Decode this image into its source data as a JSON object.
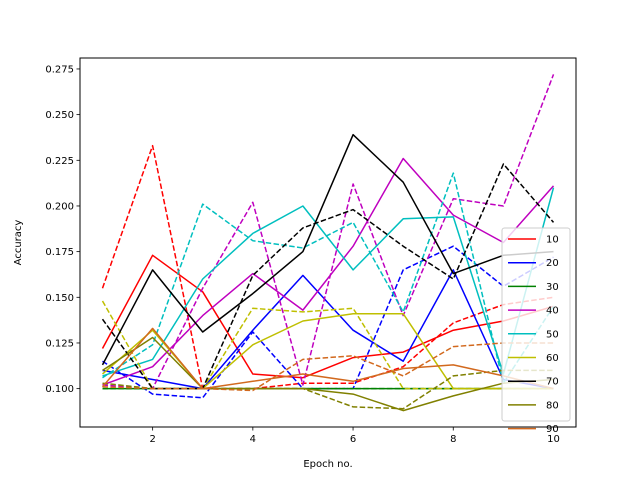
{
  "chart_data": {
    "type": "line",
    "title": "",
    "xlabel": "Epoch no.",
    "ylabel": "Accuracy",
    "xlim": [
      0.55,
      10.45
    ],
    "ylim": [
      0.079,
      0.281
    ],
    "x_ticks": [
      2,
      4,
      6,
      8,
      10
    ],
    "y_ticks": [
      0.1,
      0.125,
      0.15,
      0.175,
      0.2,
      0.225,
      0.25,
      0.275
    ],
    "y_tick_labels": [
      "0.100",
      "0.125",
      "0.150",
      "0.175",
      "0.200",
      "0.225",
      "0.250",
      "0.275"
    ],
    "grid": false,
    "legend_position": "center-right",
    "x": [
      1,
      2,
      3,
      4,
      5,
      6,
      7,
      8,
      9,
      10
    ],
    "series": [
      {
        "name": "10",
        "color": "#ff0000",
        "style": "solid",
        "values": [
          0.122,
          0.173,
          0.153,
          0.108,
          0.106,
          0.117,
          0.12,
          0.132,
          0.137,
          0.145
        ]
      },
      {
        "name": "",
        "color": "#ff0000",
        "style": "dashed",
        "values": [
          0.155,
          0.233,
          0.1,
          0.1,
          0.103,
          0.103,
          0.112,
          0.136,
          0.146,
          0.15
        ]
      },
      {
        "name": "20",
        "color": "#0000ff",
        "style": "solid",
        "values": [
          0.11,
          0.105,
          0.1,
          0.132,
          0.162,
          0.132,
          0.115,
          0.165,
          0.105,
          0.1
        ]
      },
      {
        "name": "",
        "color": "#0000ff",
        "style": "dashed",
        "values": [
          0.115,
          0.097,
          0.095,
          0.131,
          0.1,
          0.1,
          0.165,
          0.178,
          0.156,
          0.172
        ]
      },
      {
        "name": "30",
        "color": "#008000",
        "style": "solid",
        "values": [
          0.1,
          0.1,
          0.1,
          0.1,
          0.1,
          0.1,
          0.1,
          0.1,
          0.1,
          0.1
        ]
      },
      {
        "name": "",
        "color": "#008000",
        "style": "dashed",
        "values": [
          0.1,
          0.1,
          0.1,
          0.1,
          0.1,
          0.1,
          0.1,
          0.1,
          0.1,
          0.1
        ]
      },
      {
        "name": "40",
        "color": "#bf00bf",
        "style": "solid",
        "values": [
          0.102,
          0.112,
          0.14,
          0.163,
          0.143,
          0.178,
          0.226,
          0.195,
          0.18,
          0.211
        ]
      },
      {
        "name": "",
        "color": "#bf00bf",
        "style": "dashed",
        "values": [
          0.102,
          0.1,
          0.155,
          0.202,
          0.102,
          0.212,
          0.14,
          0.204,
          0.2,
          0.272
        ]
      },
      {
        "name": "50",
        "color": "#00bfbf",
        "style": "solid",
        "values": [
          0.107,
          0.116,
          0.16,
          0.185,
          0.2,
          0.165,
          0.193,
          0.194,
          0.108,
          0.21
        ]
      },
      {
        "name": "",
        "color": "#00bfbf",
        "style": "dashed",
        "values": [
          0.106,
          0.124,
          0.201,
          0.181,
          0.177,
          0.191,
          0.142,
          0.218,
          0.103,
          0.145
        ]
      },
      {
        "name": "60",
        "color": "#bfbf00",
        "style": "solid",
        "values": [
          0.108,
          0.132,
          0.1,
          0.124,
          0.137,
          0.141,
          0.141,
          0.1,
          0.1,
          0.1
        ]
      },
      {
        "name": "",
        "color": "#bfbf00",
        "style": "dashed",
        "values": [
          0.148,
          0.1,
          0.1,
          0.144,
          0.142,
          0.144,
          0.1,
          0.1,
          0.1,
          0.1
        ]
      },
      {
        "name": "70",
        "color": "#000000",
        "style": "solid",
        "values": [
          0.113,
          0.165,
          0.131,
          0.152,
          0.175,
          0.239,
          0.213,
          0.163,
          0.173,
          0.175
        ]
      },
      {
        "name": "",
        "color": "#000000",
        "style": "dashed",
        "values": [
          0.138,
          0.1,
          0.1,
          0.162,
          0.188,
          0.198,
          0.178,
          0.16,
          0.223,
          0.191
        ]
      },
      {
        "name": "80",
        "color": "#808000",
        "style": "solid",
        "values": [
          0.11,
          0.128,
          0.1,
          0.1,
          0.1,
          0.097,
          0.088,
          0.096,
          0.103,
          0.105
        ]
      },
      {
        "name": "",
        "color": "#808000",
        "style": "dashed",
        "values": [
          0.103,
          0.1,
          0.1,
          0.1,
          0.1,
          0.09,
          0.089,
          0.107,
          0.11,
          0.11
        ]
      },
      {
        "name": "90",
        "color": "#d2691e",
        "style": "solid",
        "values": [
          0.101,
          0.133,
          0.1,
          0.104,
          0.108,
          0.104,
          0.111,
          0.113,
          0.107,
          0.1
        ]
      },
      {
        "name": "",
        "color": "#d2691e",
        "style": "dashed",
        "values": [
          0.101,
          0.1,
          0.1,
          0.099,
          0.116,
          0.118,
          0.107,
          0.123,
          0.125,
          0.125
        ]
      }
    ]
  }
}
